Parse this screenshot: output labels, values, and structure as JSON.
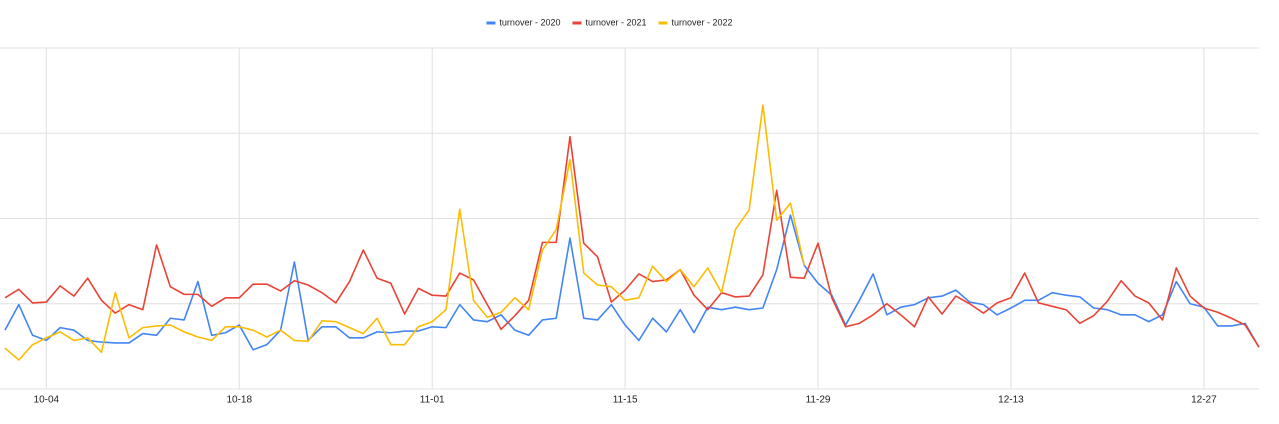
{
  "chart_data": {
    "type": "line",
    "categories": [
      null,
      null,
      null,
      "10-04",
      null,
      null,
      null,
      null,
      null,
      null,
      null,
      null,
      null,
      null,
      null,
      null,
      null,
      "10-18",
      null,
      null,
      null,
      null,
      null,
      null,
      null,
      null,
      null,
      null,
      null,
      null,
      null,
      "11-01",
      null,
      null,
      null,
      null,
      null,
      null,
      null,
      null,
      null,
      null,
      null,
      null,
      null,
      "11-15",
      null,
      null,
      null,
      null,
      null,
      null,
      null,
      null,
      null,
      null,
      null,
      null,
      null,
      "11-29",
      null,
      null,
      null,
      null,
      null,
      null,
      null,
      null,
      null,
      null,
      null,
      null,
      null,
      "12-13",
      null,
      null,
      null,
      null,
      null,
      null,
      null,
      null,
      null,
      null,
      null,
      null,
      null,
      "12-27",
      null,
      null,
      null,
      null
    ],
    "series": [
      {
        "name": "turnover - 2020",
        "color": "#4285f4",
        "values": [
          69,
          99,
          63,
          57,
          72,
          69,
          57,
          55,
          54,
          54,
          65,
          63,
          83,
          81,
          126,
          63,
          66,
          75,
          46,
          52,
          69,
          149,
          57,
          73,
          73,
          60,
          60,
          67,
          66,
          68,
          68,
          73,
          72,
          99,
          81,
          79,
          87,
          69,
          63,
          81,
          83,
          177,
          83,
          81,
          99,
          75,
          57,
          83,
          67,
          93,
          66,
          96,
          93,
          96,
          93,
          95,
          140,
          204,
          145,
          124,
          110,
          75,
          104,
          135,
          87,
          96,
          99,
          107,
          109,
          116,
          102,
          99,
          87,
          95,
          104,
          104,
          113,
          110,
          108,
          95,
          93,
          87,
          87,
          79,
          87,
          126,
          100,
          96,
          74,
          74,
          77,
          49
        ]
      },
      {
        "name": "turnover - 2021",
        "color": "#ea4335",
        "values": [
          107,
          117,
          101,
          102,
          121,
          109,
          130,
          104,
          89,
          99,
          93,
          169,
          120,
          111,
          111,
          97,
          107,
          107,
          123,
          123,
          115,
          127,
          122,
          113,
          101,
          126,
          163,
          130,
          124,
          88,
          118,
          110,
          109,
          136,
          128,
          99,
          70,
          86,
          104,
          172,
          172,
          296,
          171,
          155,
          102,
          116,
          135,
          126,
          128,
          140,
          110,
          93,
          113,
          108,
          109,
          134,
          233,
          131,
          130,
          171,
          107,
          73,
          77,
          87,
          100,
          87,
          73,
          108,
          88,
          109,
          100,
          89,
          101,
          107,
          136,
          101,
          97,
          93,
          77,
          86,
          103,
          127,
          109,
          101,
          81,
          142,
          109,
          95,
          90,
          83,
          75,
          49
        ]
      },
      {
        "name": "turnover - 2022",
        "color": "#fbbc04",
        "values": [
          48,
          34,
          52,
          60,
          67,
          57,
          60,
          43,
          113,
          60,
          72,
          74,
          75,
          67,
          61,
          57,
          73,
          73,
          69,
          61,
          69,
          57,
          56,
          80,
          79,
          72,
          65,
          83,
          52,
          52,
          73,
          79,
          93,
          211,
          104,
          84,
          90,
          107,
          93,
          163,
          187,
          269,
          136,
          122,
          120,
          104,
          107,
          144,
          126,
          140,
          120,
          142,
          113,
          187,
          210,
          333,
          198,
          218,
          145,
          null,
          null,
          null,
          null,
          null,
          null,
          null,
          null,
          null,
          null,
          null,
          null,
          null,
          null,
          null,
          null,
          null,
          null,
          null,
          null,
          null,
          null,
          null,
          null,
          null,
          null,
          null,
          null,
          null,
          null,
          null,
          null,
          null
        ]
      }
    ],
    "ylim": [
      0,
      400
    ],
    "yticks": [
      0,
      100,
      200,
      300,
      400
    ],
    "grid": true,
    "legend": "top"
  }
}
